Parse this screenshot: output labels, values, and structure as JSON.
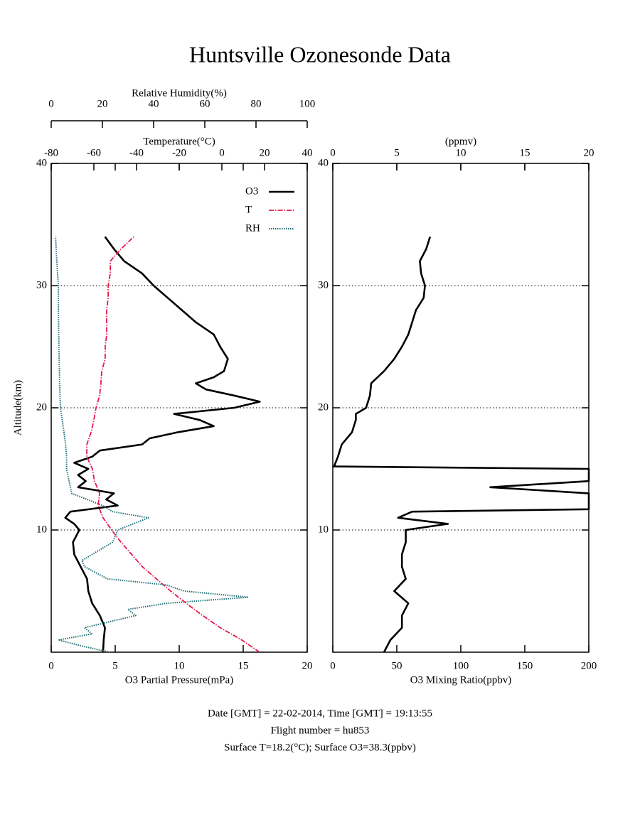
{
  "title": "Huntsville Ozonesonde Data",
  "footer": [
    "Date [GMT] = 22-02-2014,  Time [GMT] = 19:13:55",
    "Flight number = hu853",
    "Surface T=18.2(°C); Surface O3=38.3(ppbv)"
  ],
  "chart_data": [
    {
      "type": "line",
      "y_label": "Altitude(km)",
      "x_label": "O3 Partial Pressure(mPa)",
      "xlim": [
        0,
        20
      ],
      "xticks": [
        0,
        5,
        10,
        15,
        20
      ],
      "x2_label": "Temperature(°C)",
      "x2lim": [
        -80,
        40
      ],
      "x2ticks": [
        -80,
        -60,
        -40,
        -20,
        0,
        20,
        40
      ],
      "x3_label": "Relative Humidity(%)",
      "x3lim": [
        0,
        100
      ],
      "x3ticks": [
        0,
        20,
        40,
        60,
        80,
        100
      ],
      "ylim": [
        0,
        40
      ],
      "yticks": [
        10,
        20,
        30,
        40
      ],
      "grid": true,
      "legend": "upper right",
      "series": [
        {
          "name": "O3",
          "color": "#000000",
          "axis": "x",
          "altitude": [
            0,
            1,
            2,
            3,
            4,
            5,
            6,
            7,
            8,
            9,
            10,
            10.5,
            11,
            11.5,
            12,
            12.5,
            13,
            13.5,
            14,
            14.5,
            15,
            15.5,
            16,
            16.5,
            17,
            17.5,
            18,
            18.5,
            19,
            19.5,
            20,
            20.5,
            21,
            21.5,
            22,
            22.5,
            23,
            24,
            25,
            26,
            27,
            28,
            29,
            30,
            31,
            32,
            33,
            34
          ],
          "values": [
            4.05,
            4.1,
            4.2,
            3.8,
            3.2,
            2.9,
            2.8,
            2.3,
            1.8,
            1.7,
            2.2,
            1.8,
            1.1,
            1.5,
            5.2,
            4.3,
            4.9,
            2.1,
            2.7,
            2.1,
            2.9,
            1.8,
            3.2,
            3.8,
            7.1,
            7.7,
            9.9,
            12.7,
            11.6,
            9.6,
            14.3,
            16.3,
            14.3,
            12.1,
            11.3,
            12.7,
            13.5,
            13.8,
            13.2,
            12.7,
            11.3,
            10.2,
            9.1,
            8.0,
            7.1,
            5.7,
            4.9,
            4.2
          ]
        },
        {
          "name": "T",
          "color": "#e8174a",
          "axis": "x2",
          "altitude": [
            0,
            1,
            2,
            3,
            4,
            5,
            6,
            7,
            8,
            9,
            10,
            11,
            12,
            13,
            14,
            15,
            16,
            17,
            18,
            19,
            20,
            21,
            22,
            23,
            24,
            25,
            26,
            27,
            28,
            29,
            30,
            31,
            32,
            33,
            34
          ],
          "values": [
            17.7,
            9.3,
            -0.7,
            -9,
            -16.7,
            -24,
            -30.7,
            -37.3,
            -42.3,
            -47.3,
            -51.7,
            -55.7,
            -58,
            -57.3,
            -59.7,
            -60.7,
            -63.3,
            -63.3,
            -61.3,
            -60,
            -59,
            -57.3,
            -56.7,
            -56.3,
            -54.7,
            -54.7,
            -54,
            -54,
            -54,
            -53.3,
            -53.3,
            -52.3,
            -52.3,
            -47.3,
            -41.3
          ]
        },
        {
          "name": "RH",
          "color": "#1f6f78",
          "axis": "x3",
          "altitude": [
            0,
            0.5,
            1,
            1.5,
            2,
            3,
            3.5,
            4,
            4.5,
            5,
            5.5,
            6,
            7,
            7.5,
            8,
            9,
            10,
            11,
            11.5,
            12,
            13,
            14,
            15,
            16,
            17,
            18,
            20,
            22,
            25,
            28,
            30,
            32,
            34
          ],
          "values": [
            23,
            12,
            2.8,
            16,
            13,
            33,
            30,
            45,
            77,
            52,
            45,
            22,
            13,
            12,
            16,
            24,
            26,
            38,
            24,
            20,
            8,
            7,
            6,
            6,
            5.6,
            5,
            3.6,
            3.3,
            3,
            2.8,
            2.8,
            2.2,
            1.7
          ]
        }
      ]
    },
    {
      "type": "line",
      "x_label": "O3 Mixing Ratio(ppbv)",
      "xlim": [
        0,
        200
      ],
      "xticks": [
        0,
        50,
        100,
        150,
        200
      ],
      "x2_label": "(ppmv)",
      "x2lim": [
        0,
        20
      ],
      "x2ticks": [
        0,
        5,
        10,
        15,
        20
      ],
      "ylim": [
        0,
        40
      ],
      "yticks": [
        10,
        20,
        30,
        40
      ],
      "grid": true,
      "series": [
        {
          "color": "#000000",
          "axis": "x",
          "altitude": [
            0,
            1,
            2,
            3,
            4,
            5,
            6,
            7,
            8,
            9,
            10,
            10.5,
            11,
            11.5,
            11.7,
            12,
            13,
            13.5,
            14,
            14.5,
            15,
            15.2,
            16,
            17,
            18,
            19,
            19.5,
            20,
            21,
            22,
            23,
            24,
            25,
            26,
            27,
            28,
            29,
            30,
            31,
            32,
            33,
            34
          ],
          "values": [
            40,
            45,
            54,
            54,
            59,
            48,
            57,
            54,
            54,
            57,
            57,
            90,
            51,
            62,
            200,
            200,
            200,
            123,
            200,
            200,
            200,
            1,
            4,
            7,
            15,
            18,
            18,
            26,
            29,
            30,
            40,
            48,
            54,
            59,
            62,
            65,
            71,
            72,
            69,
            68,
            73,
            76
          ]
        }
      ]
    }
  ]
}
